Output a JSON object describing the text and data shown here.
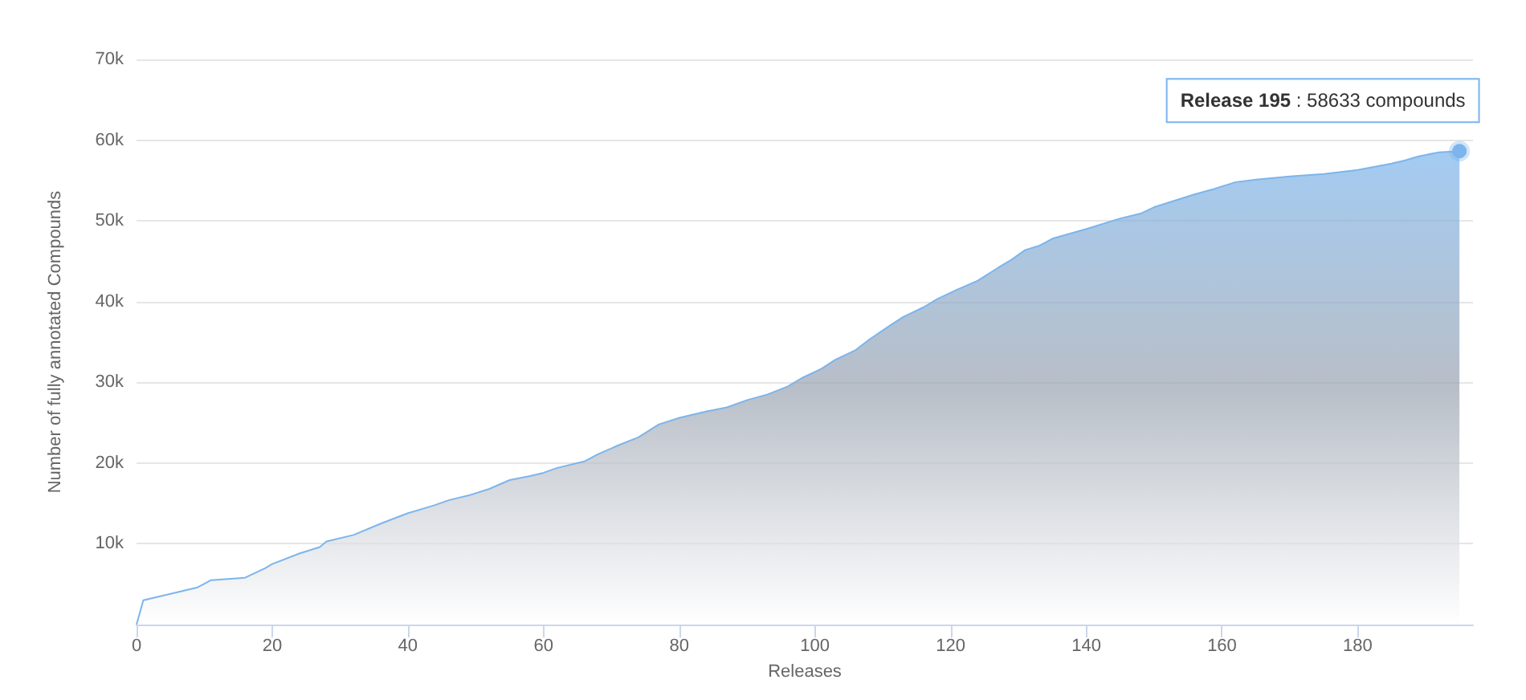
{
  "chart_data": {
    "type": "area",
    "xlabel": "Releases",
    "ylabel": "Number of fully annotated Compounds",
    "x": [
      0,
      1,
      5,
      9,
      11,
      16,
      19,
      20,
      24,
      27,
      28,
      32,
      36,
      40,
      44,
      46,
      49,
      52,
      55,
      58,
      60,
      62,
      66,
      68,
      71,
      74,
      77,
      80,
      84,
      87,
      90,
      93,
      96,
      98,
      101,
      103,
      106,
      108,
      111,
      113,
      116,
      118,
      121,
      124,
      127,
      129,
      131,
      133,
      135,
      140,
      145,
      148,
      150,
      153,
      156,
      159,
      162,
      165,
      170,
      175,
      180,
      185,
      187,
      189,
      192,
      195
    ],
    "series": [
      {
        "color": "#7cb5ec",
        "values": [
          0,
          3000,
          3800,
          4600,
          5500,
          5800,
          7000,
          7500,
          8800,
          9600,
          10300,
          11100,
          12500,
          13800,
          14800,
          15400,
          16000,
          16800,
          17900,
          18400,
          18800,
          19400,
          20200,
          21100,
          22200,
          23200,
          24800,
          25600,
          26400,
          26900,
          27800,
          28500,
          29500,
          30500,
          31700,
          32800,
          34000,
          35300,
          37000,
          38100,
          39300,
          40300,
          41500,
          42600,
          44200,
          45200,
          46400,
          46900,
          47800,
          49000,
          50300,
          50900,
          51700,
          52500,
          53300,
          54000,
          54800,
          55100,
          55500,
          55800,
          56300,
          57100,
          57500,
          58000,
          58500,
          58633
        ]
      }
    ],
    "xlim": [
      0,
      197
    ],
    "xticks": [
      0,
      20,
      40,
      60,
      80,
      100,
      120,
      140,
      160,
      180
    ],
    "ylim": [
      0,
      70000
    ],
    "yticks": [
      {
        "value": 0,
        "label": null
      },
      {
        "value": 10000,
        "label": "10k"
      },
      {
        "value": 20000,
        "label": "20k"
      },
      {
        "value": 30000,
        "label": "30k"
      },
      {
        "value": 40000,
        "label": "40k"
      },
      {
        "value": 50000,
        "label": "50k"
      },
      {
        "value": 60000,
        "label": "60k"
      },
      {
        "value": 70000,
        "label": "70k"
      }
    ],
    "grid": "y",
    "marker": "none",
    "annotations": [
      {
        "text": "Release 195 : 58633 compounds",
        "x": 195,
        "y": 58633
      }
    ]
  }
}
